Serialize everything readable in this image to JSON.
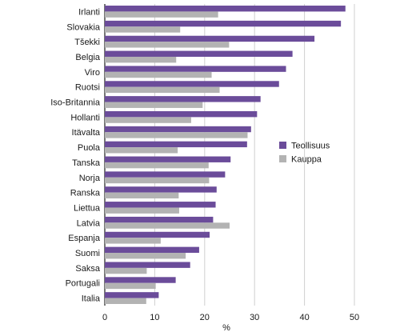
{
  "chart_data": {
    "type": "bar",
    "orientation": "horizontal",
    "categories": [
      "Irlanti",
      "Slovakia",
      "Tšekki",
      "Belgia",
      "Viro",
      "Ruotsi",
      "Iso-Britannia",
      "Hollanti",
      "Itävalta",
      "Puola",
      "Tanska",
      "Norja",
      "Ranska",
      "Liettua",
      "Latvia",
      "Espanja",
      "Suomi",
      "Saksa",
      "Portugali",
      "Italia"
    ],
    "series": [
      {
        "name": "Teollisuus",
        "color": "#6b4c9a",
        "values": [
          48.2,
          47.3,
          42.0,
          37.6,
          36.3,
          34.9,
          31.2,
          30.5,
          29.3,
          28.5,
          25.2,
          24.1,
          22.4,
          22.2,
          21.7,
          21.0,
          18.9,
          17.1,
          14.2,
          10.8
        ]
      },
      {
        "name": "Kauppa",
        "color": "#b3b3b3",
        "values": [
          22.7,
          15.1,
          24.9,
          14.3,
          21.4,
          23.0,
          19.6,
          17.3,
          28.6,
          14.6,
          20.8,
          20.9,
          14.8,
          14.9,
          25.0,
          11.2,
          16.2,
          8.4,
          10.2,
          8.3
        ]
      }
    ],
    "xlabel": "%",
    "xlim": [
      0,
      50
    ],
    "xticks": [
      0,
      10,
      20,
      30,
      40,
      50
    ],
    "grid": "vertical",
    "legend_position": "right"
  }
}
